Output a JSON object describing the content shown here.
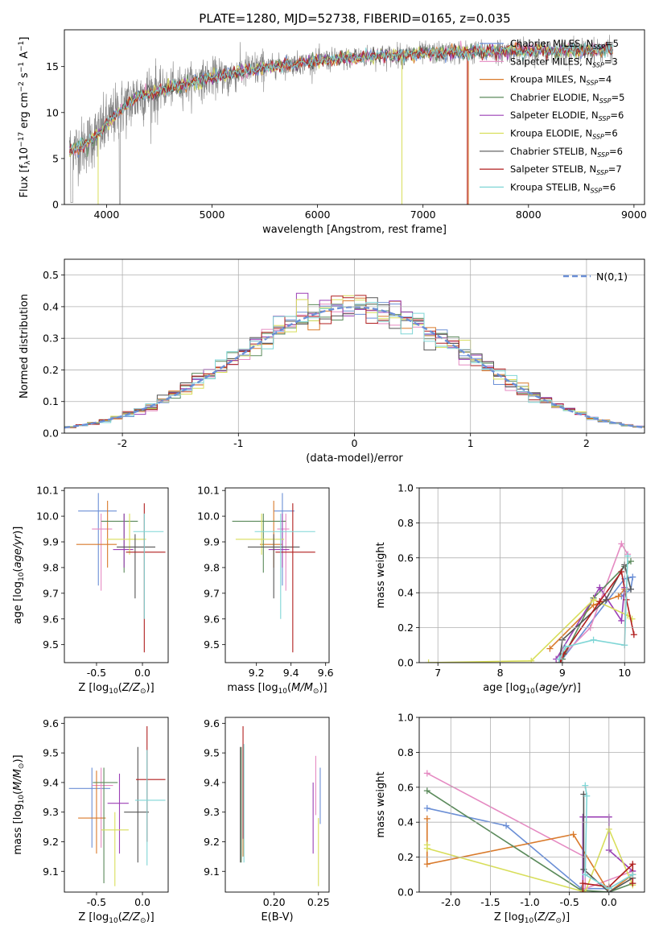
{
  "figure_title": "PLATE=1280, MJD=52738, FIBERID=0165, z=0.035",
  "series_legend": [
    {
      "pre": "Chabrier MILES, N",
      "sub": "SSP",
      "post": "=5",
      "color": "#6b8fd6"
    },
    {
      "pre": "Salpeter MILES, N",
      "sub": "SSP",
      "post": "=3",
      "color": "#e58ac2"
    },
    {
      "pre": "Kroupa MILES, N",
      "sub": "SSP",
      "post": "=4",
      "color": "#d97a2b"
    },
    {
      "pre": "Chabrier ELODIE, N",
      "sub": "SSP",
      "post": "=5",
      "color": "#5b8a5b"
    },
    {
      "pre": "Salpeter ELODIE, N",
      "sub": "SSP",
      "post": "=6",
      "color": "#9b3fb5"
    },
    {
      "pre": "Kroupa ELODIE, N",
      "sub": "SSP",
      "post": "=6",
      "color": "#d8de5a"
    },
    {
      "pre": "Chabrier STELIB, N",
      "sub": "SSP",
      "post": "=6",
      "color": "#555555"
    },
    {
      "pre": "Salpeter STELIB, N",
      "sub": "SSP",
      "post": "=7",
      "color": "#b01e1e"
    },
    {
      "pre": "Kroupa STELIB, N",
      "sub": "SSP",
      "post": "=6",
      "color": "#7fd6d6"
    }
  ],
  "chart_data": [
    {
      "id": "spectrum",
      "type": "line",
      "xlabel": "wavelength [Angstrom, rest frame]",
      "ylabel": "Flux [f_λ10^-17 erg cm^-2 s^-1 A^-1]",
      "xlim": [
        3600,
        9100
      ],
      "ylim": [
        0,
        19
      ],
      "xticks": [
        4000,
        5000,
        6000,
        7000,
        8000,
        9000
      ],
      "yticks": [
        0,
        5,
        10,
        15
      ],
      "data_color": "#808080",
      "data_range": [
        3650,
        8800
      ],
      "continuum": {
        "x": [
          3650,
          3800,
          3950,
          4100,
          4300,
          4600,
          5000,
          5500,
          6000,
          6500,
          7000,
          7500,
          8000,
          8500,
          8800
        ],
        "y": [
          5.8,
          6.5,
          8.0,
          10.0,
          11.8,
          12.7,
          13.8,
          14.9,
          15.6,
          16.1,
          16.4,
          16.6,
          16.7,
          16.8,
          16.8
        ]
      }
    },
    {
      "id": "residuals",
      "type": "histogram",
      "xlabel": "(data-model)/error",
      "ylabel": "Normed distribution",
      "xlim": [
        -2.5,
        2.5
      ],
      "ylim": [
        0,
        0.55
      ],
      "xticks": [
        -2,
        -1,
        0,
        1,
        2
      ],
      "yticks": [
        0.0,
        0.1,
        0.2,
        0.3,
        0.4,
        0.5
      ],
      "bin_width": 0.1,
      "bin_start": -2.5,
      "reference_label": "N(0,1)",
      "reference_color": "#6b8fd6"
    },
    {
      "id": "z-age",
      "type": "errorbar",
      "xlabel": "Z [log10(Z/Z⊙)]",
      "ylabel": "age [log10(age/yr)]",
      "xlim": [
        -0.85,
        0.28
      ],
      "ylim": [
        9.43,
        10.11
      ],
      "xticks": [
        -0.5,
        0.0
      ],
      "yticks": [
        9.5,
        9.6,
        9.7,
        9.8,
        9.9,
        10.0,
        10.1
      ],
      "points": [
        {
          "x": -0.48,
          "xerr": [
            0.22,
            0.2
          ],
          "y": 10.02,
          "yerr": [
            0.29,
            0.07
          ]
        },
        {
          "x": -0.45,
          "xerr": [
            0.1,
            0.12
          ],
          "y": 9.95,
          "yerr": [
            0.24,
            0.06
          ]
        },
        {
          "x": -0.38,
          "xerr": [
            0.34,
            0.1
          ],
          "y": 9.89,
          "yerr": [
            0.09,
            0.17
          ]
        },
        {
          "x": -0.2,
          "xerr": [
            0.25,
            0.15
          ],
          "y": 9.98,
          "yerr": [
            0.2,
            0.03
          ]
        },
        {
          "x": -0.2,
          "xerr": [
            0.12,
            0.1
          ],
          "y": 9.87,
          "yerr": [
            0.07,
            0.14
          ]
        },
        {
          "x": -0.14,
          "xerr": [
            0.25,
            0.18
          ],
          "y": 9.91,
          "yerr": [
            0.06,
            0.1
          ]
        },
        {
          "x": -0.08,
          "xerr": [
            0.2,
            0.22
          ],
          "y": 9.88,
          "yerr": [
            0.2,
            0.05
          ]
        },
        {
          "x": 0.02,
          "xerr": [
            0.2,
            0.23
          ],
          "y": 9.86,
          "yerr": [
            0.39,
            0.19
          ]
        },
        {
          "x": 0.02,
          "xerr": [
            0.12,
            0.21
          ],
          "y": 9.94,
          "yerr": [
            0.34,
            0.07
          ]
        }
      ]
    },
    {
      "id": "mass-age",
      "type": "errorbar",
      "xlabel": "mass [log10(M/M⊙)]",
      "ylabel": "",
      "xlim": [
        9.02,
        9.62
      ],
      "ylim": [
        9.43,
        10.11
      ],
      "xticks": [
        9.2,
        9.4,
        9.6
      ],
      "yticks": [
        9.5,
        9.6,
        9.7,
        9.8,
        9.9,
        10.0,
        10.1
      ],
      "points": [
        {
          "x": 9.35,
          "xerr": [
            0.05,
            0.07
          ],
          "y": 10.02,
          "yerr": [
            0.29,
            0.07
          ]
        },
        {
          "x": 9.37,
          "xerr": [
            0.05,
            0.02
          ],
          "y": 9.95,
          "yerr": [
            0.24,
            0.06
          ]
        },
        {
          "x": 9.3,
          "xerr": [
            0.08,
            0.05
          ],
          "y": 9.89,
          "yerr": [
            0.09,
            0.17
          ]
        },
        {
          "x": 9.24,
          "xerr": [
            0.18,
            0.13
          ],
          "y": 9.98,
          "yerr": [
            0.2,
            0.03
          ]
        },
        {
          "x": 9.35,
          "xerr": [
            0.08,
            0.04
          ],
          "y": 9.87,
          "yerr": [
            0.07,
            0.14
          ]
        },
        {
          "x": 9.23,
          "xerr": [
            0.15,
            0.13
          ],
          "y": 9.91,
          "yerr": [
            0.06,
            0.1
          ]
        },
        {
          "x": 9.3,
          "xerr": [
            0.15,
            0.15
          ],
          "y": 9.88,
          "yerr": [
            0.2,
            0.05
          ]
        },
        {
          "x": 9.41,
          "xerr": [
            0.1,
            0.13
          ],
          "y": 9.86,
          "yerr": [
            0.39,
            0.19
          ]
        },
        {
          "x": 9.34,
          "xerr": [
            0.15,
            0.2
          ],
          "y": 9.94,
          "yerr": [
            0.34,
            0.07
          ]
        }
      ]
    },
    {
      "id": "age-weight",
      "type": "line",
      "xlabel": "age [log10(age/yr)]",
      "ylabel": "mass weight",
      "xlim": [
        6.7,
        10.32
      ],
      "ylim": [
        0,
        1
      ],
      "xticks": [
        7,
        8,
        9,
        10
      ],
      "yticks": [
        0.0,
        0.2,
        0.4,
        0.6,
        0.8,
        1.0
      ],
      "series": [
        {
          "x": [
            9.0,
            10.0,
            10.13,
            10.1,
            9.95
          ],
          "y": [
            0.02,
            0.48,
            0.49,
            0.42,
            0.38
          ]
        },
        {
          "x": [
            8.95,
            9.45,
            9.95,
            10.05
          ],
          "y": [
            0.02,
            0.2,
            0.68,
            0.62
          ]
        },
        {
          "x": [
            8.8,
            9.5,
            9.9,
            10.0
          ],
          "y": [
            0.08,
            0.33,
            0.38,
            0.42
          ]
        },
        {
          "x": [
            9.0,
            9.5,
            10.0,
            10.1
          ],
          "y": [
            0.02,
            0.37,
            0.55,
            0.58
          ]
        },
        {
          "x": [
            8.9,
            9.6,
            9.95,
            10.0
          ],
          "y": [
            0.02,
            0.43,
            0.24,
            0.43
          ]
        },
        {
          "x": [
            6.85,
            8.5,
            9.5,
            10.05,
            10.12
          ],
          "y": [
            0.0,
            0.01,
            0.36,
            0.27,
            0.25
          ]
        },
        {
          "x": [
            8.95,
            9.0,
            9.7,
            10.0,
            10.1
          ],
          "y": [
            0.0,
            0.13,
            0.36,
            0.56,
            0.42
          ]
        },
        {
          "x": [
            8.97,
            9.02,
            9.6,
            9.95,
            10.03,
            10.15
          ],
          "y": [
            0.0,
            0.05,
            0.35,
            0.52,
            0.36,
            0.16
          ]
        },
        {
          "x": [
            8.95,
            9.05,
            9.5,
            10.0,
            10.05
          ],
          "y": [
            0.02,
            0.09,
            0.13,
            0.1,
            0.61
          ]
        }
      ]
    },
    {
      "id": "z-mass",
      "type": "errorbar",
      "xlabel": "Z [log10(Z/Z⊙)]",
      "ylabel": "mass [log10(M/M⊙)]",
      "xlim": [
        -0.85,
        0.28
      ],
      "ylim": [
        9.03,
        9.62
      ],
      "xticks": [
        -0.5,
        0.0
      ],
      "yticks": [
        9.1,
        9.2,
        9.3,
        9.4,
        9.5,
        9.6
      ],
      "points": [
        {
          "x": -0.55,
          "xerr": [
            0.25,
            0.2
          ],
          "y": 9.38,
          "yerr": [
            0.2,
            0.07
          ]
        },
        {
          "x": -0.45,
          "xerr": [
            0.1,
            0.13
          ],
          "y": 9.39,
          "yerr": [
            0.21,
            0.06
          ]
        },
        {
          "x": -0.5,
          "xerr": [
            0.2,
            0.1
          ],
          "y": 9.28,
          "yerr": [
            0.12,
            0.16
          ]
        },
        {
          "x": -0.42,
          "xerr": [
            0.12,
            0.15
          ],
          "y": 9.4,
          "yerr": [
            0.34,
            0.05
          ]
        },
        {
          "x": -0.25,
          "xerr": [
            0.13,
            0.1
          ],
          "y": 9.33,
          "yerr": [
            0.17,
            0.1
          ]
        },
        {
          "x": -0.3,
          "xerr": [
            0.15,
            0.15
          ],
          "y": 9.24,
          "yerr": [
            0.19,
            0.06
          ]
        },
        {
          "x": -0.05,
          "xerr": [
            0.15,
            0.12
          ],
          "y": 9.3,
          "yerr": [
            0.17,
            0.22
          ]
        },
        {
          "x": 0.05,
          "xerr": [
            0.12,
            0.2
          ],
          "y": 9.41,
          "yerr": [
            0.21,
            0.18
          ]
        },
        {
          "x": 0.05,
          "xerr": [
            0.13,
            0.2
          ],
          "y": 9.34,
          "yerr": [
            0.22,
            0.17
          ]
        }
      ]
    },
    {
      "id": "ebv-mass",
      "type": "errorbar",
      "xlabel": "E(B-V)",
      "ylabel": "",
      "xlim": [
        0.145,
        0.262
      ],
      "ylim": [
        9.03,
        9.62
      ],
      "xticks": [
        0.2,
        0.25
      ],
      "yticks": [
        9.1,
        9.2,
        9.3,
        9.4,
        9.5,
        9.6
      ],
      "points": [
        {
          "x": 0.252,
          "y": 9.38,
          "yerr": [
            0.12,
            0.07
          ]
        },
        {
          "x": 0.247,
          "y": 9.39,
          "yerr": [
            0.1,
            0.1
          ]
        },
        {
          "x": 0.165,
          "y": 9.35,
          "yerr": [
            0.2,
            0.18
          ]
        },
        {
          "x": 0.163,
          "y": 9.3,
          "yerr": [
            0.17,
            0.22
          ]
        },
        {
          "x": 0.244,
          "y": 9.3,
          "yerr": [
            0.14,
            0.1
          ]
        },
        {
          "x": 0.25,
          "y": 9.2,
          "yerr": [
            0.15,
            0.08
          ]
        },
        {
          "x": 0.162,
          "y": 9.35,
          "yerr": [
            0.22,
            0.17
          ]
        },
        {
          "x": 0.165,
          "y": 9.41,
          "yerr": [
            0.2,
            0.18
          ]
        },
        {
          "x": 0.166,
          "y": 9.3,
          "yerr": [
            0.17,
            0.23
          ]
        }
      ]
    },
    {
      "id": "z-weight",
      "type": "line",
      "xlabel": "Z [log10(Z/Z⊙)]",
      "ylabel": "mass weight",
      "xlim": [
        -2.4,
        0.45
      ],
      "ylim": [
        0,
        1
      ],
      "xticks": [
        -2.0,
        -1.5,
        -1.0,
        -0.5,
        0.0
      ],
      "yticks": [
        0.0,
        0.2,
        0.4,
        0.6,
        0.8,
        1.0
      ],
      "series": [
        {
          "x": [
            -2.3,
            -1.3,
            -0.35,
            0.0,
            0.3
          ],
          "y": [
            0.48,
            0.38,
            0.02,
            0.02,
            0.1
          ]
        },
        {
          "x": [
            -2.3,
            -0.3,
            -0.3,
            0.3
          ],
          "y": [
            0.68,
            0.2,
            0.02,
            0.12
          ]
        },
        {
          "x": [
            -2.3,
            -2.3,
            -0.45,
            0.0,
            0.3
          ],
          "y": [
            0.42,
            0.16,
            0.33,
            0.0,
            0.1
          ]
        },
        {
          "x": [
            -2.3,
            -0.35,
            0.0,
            0.3
          ],
          "y": [
            0.58,
            0.01,
            0.0,
            0.05
          ]
        },
        {
          "x": [
            -0.33,
            -0.33,
            0.0,
            0.0,
            0.3
          ],
          "y": [
            0.0,
            0.43,
            0.43,
            0.24,
            0.12
          ]
        },
        {
          "x": [
            -2.3,
            -2.3,
            -0.3,
            0.0,
            0.3
          ],
          "y": [
            0.27,
            0.25,
            0.0,
            0.36,
            0.04
          ]
        },
        {
          "x": [
            -0.32,
            -0.32,
            0.0,
            0.3
          ],
          "y": [
            0.56,
            0.13,
            0.0,
            0.08
          ]
        },
        {
          "x": [
            -0.33,
            -0.33,
            0.0,
            0.3,
            0.3
          ],
          "y": [
            0.0,
            0.05,
            0.03,
            0.16,
            0.05
          ]
        },
        {
          "x": [
            -0.3,
            -0.28,
            -0.3,
            0.0,
            0.3
          ],
          "y": [
            0.61,
            0.55,
            0.1,
            0.02,
            0.1
          ]
        }
      ]
    }
  ]
}
